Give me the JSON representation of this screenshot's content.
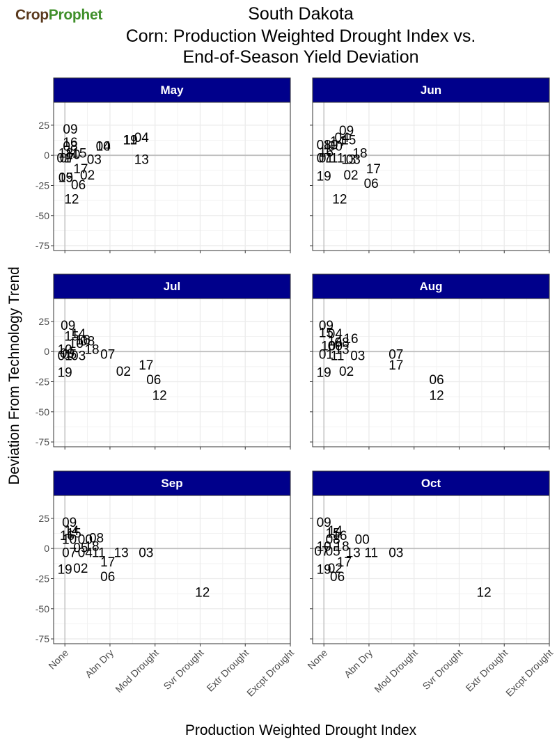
{
  "brand": {
    "part1": "Crop",
    "part2": "Prophet"
  },
  "chart_data": {
    "type": "scatter",
    "title_lines": [
      "South Dakota",
      "Corn: Production Weighted Drought Index vs.",
      "End-of-Season Yield Deviation"
    ],
    "xlabel": "Production Weighted Drought Index",
    "ylabel": "Deviation From Technology Trend",
    "x_ticks": [
      "None",
      "Abn Dry",
      "Mod Drought",
      "Svr Drought",
      "Extr Drought",
      "Excpt Drought"
    ],
    "xlim": [
      -0.25,
      5
    ],
    "ylim": [
      -79,
      44
    ],
    "y_ticks": [
      25,
      0,
      -25,
      -50,
      -75
    ],
    "grid": true,
    "colors": {
      "strip_fill": "#00008b",
      "strip_text": "#ffffff",
      "zero_line": "#bfbfbf",
      "grid": "#ebebeb"
    },
    "panels": [
      {
        "name": "May",
        "points": [
          {
            "label": "09",
            "x": 0.12,
            "y": 22
          },
          {
            "label": "16",
            "x": 0.12,
            "y": 11
          },
          {
            "label": "08",
            "x": 0.12,
            "y": 8
          },
          {
            "label": "18",
            "x": 0.02,
            "y": 2
          },
          {
            "label": "15",
            "x": 0.32,
            "y": 2
          },
          {
            "label": "10",
            "x": 0.18,
            "y": 1
          },
          {
            "label": "01",
            "x": -0.02,
            "y": -2
          },
          {
            "label": "07",
            "x": 0.05,
            "y": -2
          },
          {
            "label": "03",
            "x": 0.65,
            "y": -3
          },
          {
            "label": "00",
            "x": 0.85,
            "y": 8
          },
          {
            "label": "14",
            "x": 0.85,
            "y": 8
          },
          {
            "label": "11",
            "x": 1.45,
            "y": 13
          },
          {
            "label": "19",
            "x": 1.45,
            "y": 13
          },
          {
            "label": "04",
            "x": 1.7,
            "y": 15
          },
          {
            "label": "13",
            "x": 1.7,
            "y": -3
          },
          {
            "label": "17",
            "x": 0.35,
            "y": -11
          },
          {
            "label": "02",
            "x": 0.5,
            "y": -16
          },
          {
            "label": "19",
            "x": 0.02,
            "y": -18
          },
          {
            "label": "05",
            "x": 0.02,
            "y": -18
          },
          {
            "label": "06",
            "x": 0.3,
            "y": -24
          },
          {
            "label": "12",
            "x": 0.15,
            "y": -36
          }
        ]
      },
      {
        "name": "Jun",
        "points": [
          {
            "label": "09",
            "x": 0.5,
            "y": 21
          },
          {
            "label": "04",
            "x": 0.4,
            "y": 15
          },
          {
            "label": "15",
            "x": 0.55,
            "y": 13
          },
          {
            "label": "14",
            "x": 0.3,
            "y": 12
          },
          {
            "label": "08",
            "x": 0.0,
            "y": 9
          },
          {
            "label": "10",
            "x": 0.15,
            "y": 9
          },
          {
            "label": "00",
            "x": 0.25,
            "y": 8
          },
          {
            "label": "16",
            "x": 0.05,
            "y": 3
          },
          {
            "label": "18",
            "x": 0.8,
            "y": 2
          },
          {
            "label": "07",
            "x": 0.0,
            "y": -2
          },
          {
            "label": "01",
            "x": 0.05,
            "y": -2
          },
          {
            "label": "11",
            "x": 0.3,
            "y": -2
          },
          {
            "label": "13",
            "x": 0.55,
            "y": -3
          },
          {
            "label": "03",
            "x": 0.65,
            "y": -3
          },
          {
            "label": "17",
            "x": 1.1,
            "y": -11
          },
          {
            "label": "19",
            "x": 0.0,
            "y": -17
          },
          {
            "label": "02",
            "x": 0.6,
            "y": -16
          },
          {
            "label": "06",
            "x": 1.05,
            "y": -23
          },
          {
            "label": "12",
            "x": 0.35,
            "y": -36
          }
        ]
      },
      {
        "name": "Jul",
        "points": [
          {
            "label": "09",
            "x": 0.07,
            "y": 22
          },
          {
            "label": "14",
            "x": 0.3,
            "y": 15
          },
          {
            "label": "15",
            "x": 0.15,
            "y": 13
          },
          {
            "label": "16",
            "x": 0.4,
            "y": 10
          },
          {
            "label": "08",
            "x": 0.5,
            "y": 9
          },
          {
            "label": "10",
            "x": 0.25,
            "y": 7
          },
          {
            "label": "18",
            "x": 0.6,
            "y": 2
          },
          {
            "label": "10",
            "x": 0.0,
            "y": 2
          },
          {
            "label": "00",
            "x": 0.05,
            "y": -1
          },
          {
            "label": "05",
            "x": 0.1,
            "y": -2
          },
          {
            "label": "03",
            "x": 0.3,
            "y": -3
          },
          {
            "label": "01",
            "x": 0.0,
            "y": -3
          },
          {
            "label": "07",
            "x": 0.95,
            "y": -2
          },
          {
            "label": "17",
            "x": 1.8,
            "y": -11
          },
          {
            "label": "02",
            "x": 1.3,
            "y": -16
          },
          {
            "label": "19",
            "x": 0.0,
            "y": -17
          },
          {
            "label": "06",
            "x": 1.97,
            "y": -23
          },
          {
            "label": "12",
            "x": 2.1,
            "y": -36
          }
        ]
      },
      {
        "name": "Aug",
        "points": [
          {
            "label": "09",
            "x": 0.05,
            "y": 22
          },
          {
            "label": "15",
            "x": 0.05,
            "y": 16
          },
          {
            "label": "04",
            "x": 0.25,
            "y": 15
          },
          {
            "label": "16",
            "x": 0.6,
            "y": 11
          },
          {
            "label": "14",
            "x": 0.25,
            "y": 9
          },
          {
            "label": "08",
            "x": 0.4,
            "y": 8
          },
          {
            "label": "10",
            "x": 0.1,
            "y": 5
          },
          {
            "label": "00",
            "x": 0.25,
            "y": 5
          },
          {
            "label": "13",
            "x": 0.4,
            "y": 2
          },
          {
            "label": "01",
            "x": 0.05,
            "y": -2
          },
          {
            "label": "11",
            "x": 0.3,
            "y": -3
          },
          {
            "label": "03",
            "x": 0.75,
            "y": -3
          },
          {
            "label": "07",
            "x": 1.6,
            "y": -2
          },
          {
            "label": "17",
            "x": 1.6,
            "y": -11
          },
          {
            "label": "19",
            "x": 0.0,
            "y": -17
          },
          {
            "label": "02",
            "x": 0.5,
            "y": -16
          },
          {
            "label": "06",
            "x": 2.5,
            "y": -23
          },
          {
            "label": "12",
            "x": 2.5,
            "y": -36
          }
        ]
      },
      {
        "name": "Sep",
        "points": [
          {
            "label": "09",
            "x": 0.1,
            "y": 22
          },
          {
            "label": "14",
            "x": 0.15,
            "y": 15
          },
          {
            "label": "15",
            "x": 0.2,
            "y": 13
          },
          {
            "label": "16",
            "x": 0.05,
            "y": 11
          },
          {
            "label": "10",
            "x": 0.1,
            "y": 8
          },
          {
            "label": "00",
            "x": 0.45,
            "y": 8
          },
          {
            "label": "08",
            "x": 0.7,
            "y": 9
          },
          {
            "label": "18",
            "x": 0.6,
            "y": 2
          },
          {
            "label": "05",
            "x": 0.35,
            "y": 1
          },
          {
            "label": "07",
            "x": 0.1,
            "y": -3
          },
          {
            "label": "04",
            "x": 0.45,
            "y": -3
          },
          {
            "label": "11",
            "x": 0.75,
            "y": -3
          },
          {
            "label": "13",
            "x": 1.25,
            "y": -3
          },
          {
            "label": "03",
            "x": 1.8,
            "y": -3
          },
          {
            "label": "17",
            "x": 0.95,
            "y": -11
          },
          {
            "label": "19",
            "x": 0.0,
            "y": -17
          },
          {
            "label": "02",
            "x": 0.35,
            "y": -16
          },
          {
            "label": "06",
            "x": 0.95,
            "y": -23
          },
          {
            "label": "12",
            "x": 3.05,
            "y": -36
          }
        ]
      },
      {
        "name": "Oct",
        "points": [
          {
            "label": "09",
            "x": 0.0,
            "y": 22
          },
          {
            "label": "14",
            "x": 0.25,
            "y": 15
          },
          {
            "label": "15",
            "x": 0.2,
            "y": 13
          },
          {
            "label": "16",
            "x": 0.35,
            "y": 11
          },
          {
            "label": "08",
            "x": 0.2,
            "y": 8
          },
          {
            "label": "00",
            "x": 0.85,
            "y": 8
          },
          {
            "label": "10",
            "x": 0.0,
            "y": 2
          },
          {
            "label": "18",
            "x": 0.4,
            "y": 2
          },
          {
            "label": "07",
            "x": -0.05,
            "y": -2
          },
          {
            "label": "05",
            "x": 0.2,
            "y": -2
          },
          {
            "label": "13",
            "x": 0.65,
            "y": -3
          },
          {
            "label": "11",
            "x": 1.05,
            "y": -3
          },
          {
            "label": "03",
            "x": 1.6,
            "y": -3
          },
          {
            "label": "17",
            "x": 0.45,
            "y": -11
          },
          {
            "label": "19",
            "x": 0.0,
            "y": -17
          },
          {
            "label": "02",
            "x": 0.25,
            "y": -16
          },
          {
            "label": "06",
            "x": 0.3,
            "y": -23
          },
          {
            "label": "12",
            "x": 3.55,
            "y": -36
          }
        ]
      }
    ]
  }
}
